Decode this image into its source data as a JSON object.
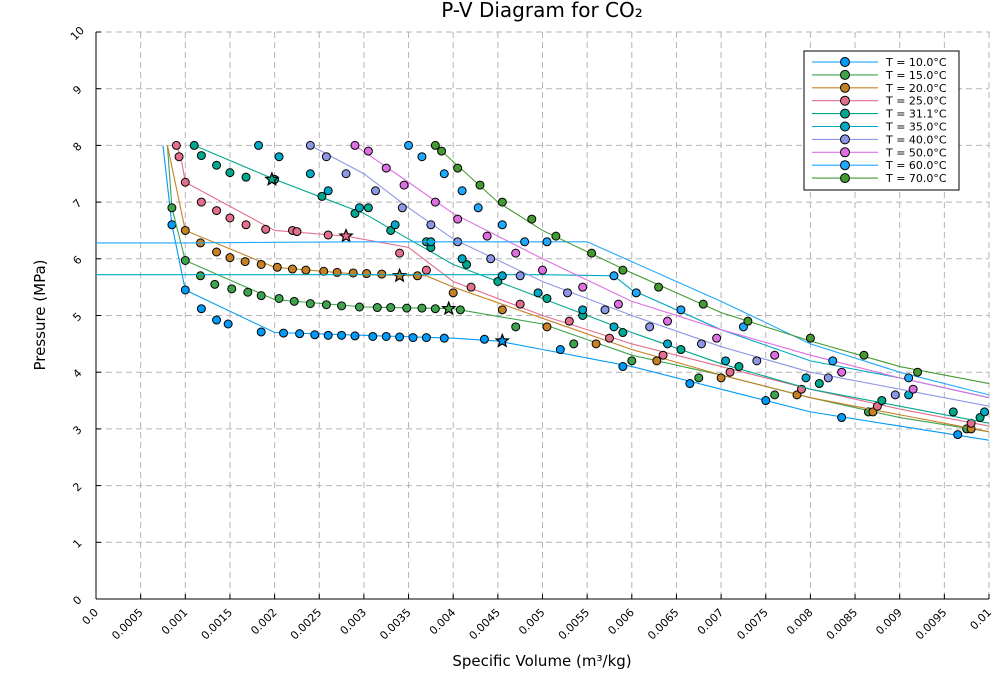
{
  "chart_data": {
    "type": "scatter",
    "title": "P-V Diagram for CO₂",
    "xlabel": "Specific Volume (m³/kg)",
    "ylabel": "Pressure (MPa)",
    "xlim": [
      0,
      0.01
    ],
    "ylim": [
      0,
      10
    ],
    "xticks": [
      "0.0",
      "0.0005",
      "0.001",
      "0.0015",
      "0.002",
      "0.0025",
      "0.003",
      "0.0035",
      "0.004",
      "0.0045",
      "0.005",
      "0.0055",
      "0.006",
      "0.0065",
      "0.007",
      "0.0075",
      "0.008",
      "0.0085",
      "0.009",
      "0.0095",
      "0.01"
    ],
    "yticks": [
      "0",
      "1",
      "2",
      "3",
      "4",
      "5",
      "6",
      "7",
      "8",
      "9",
      "10"
    ],
    "grid": true,
    "legend_position": "top-right",
    "colors": [
      "#009af9",
      "#3da44d",
      "#c68125",
      "#e26f8b",
      "#00a98d",
      "#00a9c5",
      "#8e97e6",
      "#de6fe3",
      "#1fa8ff",
      "#449a30"
    ],
    "series": [
      {
        "name": "T = 10.0°C",
        "line_x": [
          0.00075,
          0.00085,
          0.001,
          0.002,
          0.003,
          0.004,
          0.0045,
          0.005,
          0.006,
          0.007,
          0.008,
          0.009,
          0.01
        ],
        "line_y": [
          8.0,
          6.6,
          5.45,
          4.7,
          4.65,
          4.6,
          4.55,
          4.4,
          4.1,
          3.7,
          3.3,
          3.05,
          2.8
        ],
        "x": [
          0.00085,
          0.001,
          0.00118,
          0.00135,
          0.00148,
          0.00185,
          0.0021,
          0.00228,
          0.00245,
          0.0026,
          0.00275,
          0.0029,
          0.0031,
          0.00325,
          0.0034,
          0.00355,
          0.0037,
          0.0039,
          0.00435,
          0.0052,
          0.0059,
          0.00665,
          0.0075,
          0.00835,
          0.00965
        ],
        "y": [
          6.6,
          5.45,
          5.12,
          4.92,
          4.85,
          4.71,
          4.69,
          4.68,
          4.66,
          4.65,
          4.65,
          4.64,
          4.63,
          4.63,
          4.62,
          4.61,
          4.61,
          4.6,
          4.58,
          4.4,
          4.1,
          3.8,
          3.5,
          3.2,
          2.9
        ],
        "critical": [
          0.00455,
          4.55
        ]
      },
      {
        "name": "T = 15.0°C",
        "line_x": [
          0.0008,
          0.00085,
          0.001,
          0.002,
          0.003,
          0.004,
          0.005,
          0.006,
          0.007,
          0.008,
          0.009,
          0.01
        ],
        "line_y": [
          8.0,
          6.9,
          5.97,
          5.28,
          5.15,
          5.12,
          4.85,
          4.3,
          3.95,
          3.55,
          3.2,
          2.95
        ],
        "x": [
          0.00085,
          0.001,
          0.00117,
          0.00133,
          0.00152,
          0.0017,
          0.00185,
          0.00205,
          0.00222,
          0.0024,
          0.00258,
          0.00275,
          0.00295,
          0.00315,
          0.0033,
          0.00348,
          0.00365,
          0.0038,
          0.00408,
          0.0047,
          0.00535,
          0.006,
          0.00675,
          0.0076,
          0.00865,
          0.00975
        ],
        "y": [
          6.9,
          5.97,
          5.7,
          5.55,
          5.47,
          5.41,
          5.35,
          5.3,
          5.25,
          5.21,
          5.19,
          5.17,
          5.15,
          5.14,
          5.14,
          5.13,
          5.13,
          5.12,
          5.1,
          4.8,
          4.5,
          4.2,
          3.9,
          3.6,
          3.3,
          3.0
        ],
        "critical": [
          0.00395,
          5.12
        ]
      },
      {
        "name": "T = 20.0°C",
        "line_x": [
          0.0008,
          0.00088,
          0.001,
          0.002,
          0.003,
          0.0037,
          0.004,
          0.005,
          0.006,
          0.007,
          0.008,
          0.009,
          0.01
        ],
        "line_y": [
          8.0,
          7.4,
          6.5,
          5.85,
          5.72,
          5.7,
          5.5,
          4.95,
          4.4,
          3.95,
          3.55,
          3.25,
          2.95
        ],
        "x": [
          0.001,
          0.00117,
          0.00135,
          0.0015,
          0.00167,
          0.00185,
          0.00203,
          0.0022,
          0.00235,
          0.00255,
          0.0027,
          0.00288,
          0.00303,
          0.0032,
          0.0036,
          0.004,
          0.00455,
          0.00505,
          0.0056,
          0.00628,
          0.007,
          0.00785,
          0.0087,
          0.0098
        ],
        "y": [
          6.5,
          6.28,
          6.12,
          6.02,
          5.95,
          5.9,
          5.85,
          5.82,
          5.8,
          5.78,
          5.76,
          5.75,
          5.74,
          5.73,
          5.7,
          5.4,
          5.1,
          4.8,
          4.5,
          4.2,
          3.9,
          3.6,
          3.3,
          3.0
        ],
        "critical": [
          0.0034,
          5.7
        ]
      },
      {
        "name": "T = 25.0°C",
        "line_x": [
          0.0009,
          0.00095,
          0.001,
          0.002,
          0.0028,
          0.0035,
          0.004,
          0.005,
          0.006,
          0.007,
          0.008,
          0.009,
          0.01
        ],
        "line_y": [
          8.0,
          7.8,
          7.35,
          6.5,
          6.4,
          6.2,
          5.6,
          5.0,
          4.5,
          4.1,
          3.7,
          3.35,
          3.05
        ],
        "x": [
          0.0009,
          0.00093,
          0.001,
          0.00118,
          0.00135,
          0.0015,
          0.00168,
          0.0019,
          0.0022,
          0.00225,
          0.0026,
          0.0034,
          0.0037,
          0.0042,
          0.00475,
          0.0053,
          0.00575,
          0.00635,
          0.0071,
          0.0079,
          0.00875,
          0.0098
        ],
        "y": [
          8.0,
          7.8,
          7.35,
          7.0,
          6.85,
          6.72,
          6.6,
          6.52,
          6.5,
          6.48,
          6.42,
          6.1,
          5.8,
          5.5,
          5.2,
          4.9,
          4.6,
          4.3,
          4.0,
          3.7,
          3.4,
          3.1
        ],
        "critical": [
          0.0028,
          6.4
        ]
      },
      {
        "name": "T = 31.1°C",
        "line_x": [
          0.0011,
          0.002,
          0.0025,
          0.003,
          0.0035,
          0.004,
          0.0045,
          0.005,
          0.006,
          0.007,
          0.008,
          0.009,
          0.01
        ],
        "line_y": [
          8.0,
          7.4,
          7.1,
          6.8,
          6.35,
          5.9,
          5.6,
          5.3,
          4.7,
          4.15,
          3.7,
          3.4,
          3.1
        ],
        "x": [
          0.0011,
          0.00118,
          0.00135,
          0.0015,
          0.00168,
          0.002,
          0.00253,
          0.0029,
          0.00305,
          0.0033,
          0.0037,
          0.00375,
          0.00415,
          0.0045,
          0.00505,
          0.00545,
          0.0059,
          0.00655,
          0.0072,
          0.0081,
          0.0088,
          0.0096,
          0.0099
        ],
        "y": [
          8.0,
          7.82,
          7.65,
          7.52,
          7.44,
          7.4,
          7.1,
          6.8,
          6.9,
          6.5,
          6.3,
          6.2,
          5.9,
          5.6,
          5.3,
          5.0,
          4.7,
          4.4,
          4.1,
          3.8,
          3.5,
          3.3,
          3.2
        ],
        "critical": [
          0.00197,
          7.4
        ]
      },
      {
        "name": "T = 35.0°C",
        "line_x": [
          0,
          0.001,
          0.002,
          0.003,
          0.004,
          0.0045,
          0.005,
          0.0058,
          0.006,
          0.007,
          0.008,
          0.009,
          0.01
        ],
        "line_y": [
          5.72,
          5.72,
          5.72,
          5.72,
          5.72,
          5.72,
          5.72,
          5.7,
          5.45,
          4.75,
          4.2,
          3.9,
          3.55
        ],
        "x": [
          0.00182,
          0.00205,
          0.0024,
          0.0026,
          0.00295,
          0.00335,
          0.00375,
          0.0041,
          0.00455,
          0.00495,
          0.00545,
          0.0058,
          0.0064,
          0.00705,
          0.00795,
          0.0091,
          0.00995
        ],
        "y": [
          8.0,
          7.8,
          7.5,
          7.2,
          6.9,
          6.6,
          6.3,
          6.0,
          5.7,
          5.4,
          5.1,
          4.8,
          4.5,
          4.2,
          3.9,
          3.6,
          3.3
        ],
        "critical": null
      },
      {
        "name": "T = 40.0°C",
        "line_x": [
          0.0024,
          0.003,
          0.0035,
          0.004,
          0.005,
          0.006,
          0.007,
          0.008,
          0.009,
          0.01
        ],
        "line_y": [
          8.0,
          7.5,
          6.9,
          6.35,
          5.6,
          5.0,
          4.45,
          4.0,
          3.7,
          3.4
        ],
        "x": [
          0.0024,
          0.00258,
          0.0028,
          0.00313,
          0.00343,
          0.00375,
          0.00405,
          0.00442,
          0.00475,
          0.00528,
          0.0057,
          0.0062,
          0.00678,
          0.0074,
          0.0082,
          0.00895
        ],
        "y": [
          8.0,
          7.8,
          7.5,
          7.2,
          6.9,
          6.6,
          6.3,
          6.0,
          5.7,
          5.4,
          5.1,
          4.8,
          4.5,
          4.2,
          3.9,
          3.6
        ],
        "critical": null
      },
      {
        "name": "T = 50.0°C",
        "line_x": [
          0.0029,
          0.0035,
          0.004,
          0.005,
          0.006,
          0.007,
          0.008,
          0.009,
          0.01
        ],
        "line_y": [
          8.0,
          7.35,
          6.8,
          6.0,
          5.25,
          4.75,
          4.3,
          3.9,
          3.55
        ],
        "x": [
          0.0029,
          0.00305,
          0.00325,
          0.00345,
          0.0038,
          0.00405,
          0.00438,
          0.0047,
          0.005,
          0.00545,
          0.00585,
          0.0064,
          0.00695,
          0.0076,
          0.00835,
          0.00915
        ],
        "y": [
          8.0,
          7.9,
          7.6,
          7.3,
          7.0,
          6.7,
          6.4,
          6.1,
          5.8,
          5.5,
          5.2,
          4.9,
          4.6,
          4.3,
          4.0,
          3.7
        ],
        "critical": null
      },
      {
        "name": "T = 60.0°C",
        "line_x": [
          0,
          0.001,
          0.002,
          0.003,
          0.004,
          0.005,
          0.0055,
          0.006,
          0.007,
          0.008,
          0.009,
          0.01
        ],
        "line_y": [
          6.28,
          6.28,
          6.29,
          6.3,
          6.3,
          6.3,
          6.3,
          5.95,
          5.25,
          4.5,
          4.0,
          3.6
        ],
        "x": [
          0.0035,
          0.00365,
          0.0039,
          0.0041,
          0.00428,
          0.00455,
          0.0048,
          0.00505,
          0.0058,
          0.00605,
          0.00655,
          0.00725,
          0.00825,
          0.0091
        ],
        "y": [
          8.0,
          7.8,
          7.5,
          7.2,
          6.9,
          6.6,
          6.3,
          6.3,
          5.7,
          5.4,
          5.1,
          4.8,
          4.2,
          3.9
        ],
        "critical": null
      },
      {
        "name": "T = 70.0°C",
        "line_x": [
          0.0038,
          0.0045,
          0.005,
          0.006,
          0.007,
          0.008,
          0.009,
          0.01
        ],
        "line_y": [
          8.0,
          7.0,
          6.5,
          5.75,
          5.05,
          4.55,
          4.1,
          3.8
        ],
        "x": [
          0.0038,
          0.00387,
          0.00405,
          0.0043,
          0.00455,
          0.00488,
          0.00515,
          0.00555,
          0.0059,
          0.0063,
          0.0068,
          0.0073,
          0.008,
          0.0086,
          0.0092
        ],
        "y": [
          8.0,
          7.9,
          7.6,
          7.3,
          7.0,
          6.7,
          6.4,
          6.1,
          5.8,
          5.5,
          5.2,
          4.9,
          4.6,
          4.3,
          4.0
        ],
        "critical": null
      }
    ]
  }
}
